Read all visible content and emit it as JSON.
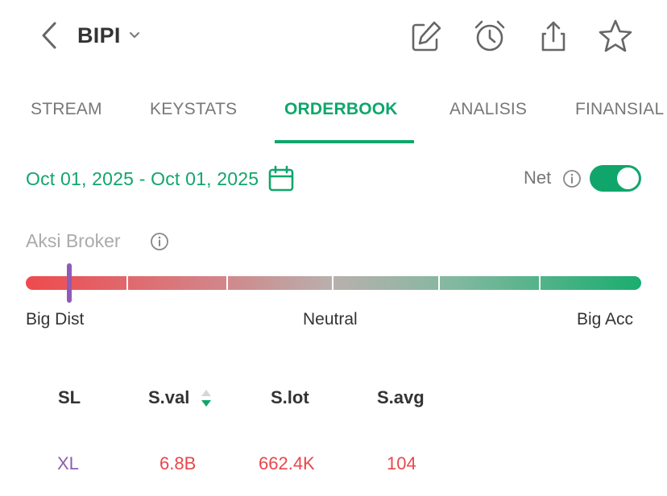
{
  "header": {
    "ticker": "BIPI",
    "icons": [
      "back-chevron-icon",
      "chevron-down-icon",
      "edit-icon",
      "alarm-clock-icon",
      "share-icon",
      "star-icon"
    ]
  },
  "tabs": [
    {
      "label": "STREAM",
      "active": false
    },
    {
      "label": "KEYSTATS",
      "active": false
    },
    {
      "label": "ORDERBOOK",
      "active": true
    },
    {
      "label": "ANALISIS",
      "active": false
    },
    {
      "label": "FINANSIAL",
      "active": false
    }
  ],
  "filters": {
    "date_range": "Oct 01, 2025 - Oct 01, 2025",
    "net_label": "Net",
    "net_enabled": true
  },
  "broker_action": {
    "title": "Aksi Broker",
    "scale_left": "Big Dist",
    "scale_mid": "Neutral",
    "scale_right": "Big Acc",
    "segments": 6
  },
  "table": {
    "headers": [
      "SL",
      "S.val",
      "S.lot",
      "S.avg"
    ],
    "sorted_by": "S.val",
    "rows": [
      {
        "sl": "XL",
        "sval": "6.8B",
        "slot": "662.4K",
        "savg": "104"
      }
    ]
  },
  "colors": {
    "accent": "#10a66b",
    "sell": "#e8474c",
    "broker_code": "#8e5cb6",
    "marker": "#8e5cb6"
  }
}
